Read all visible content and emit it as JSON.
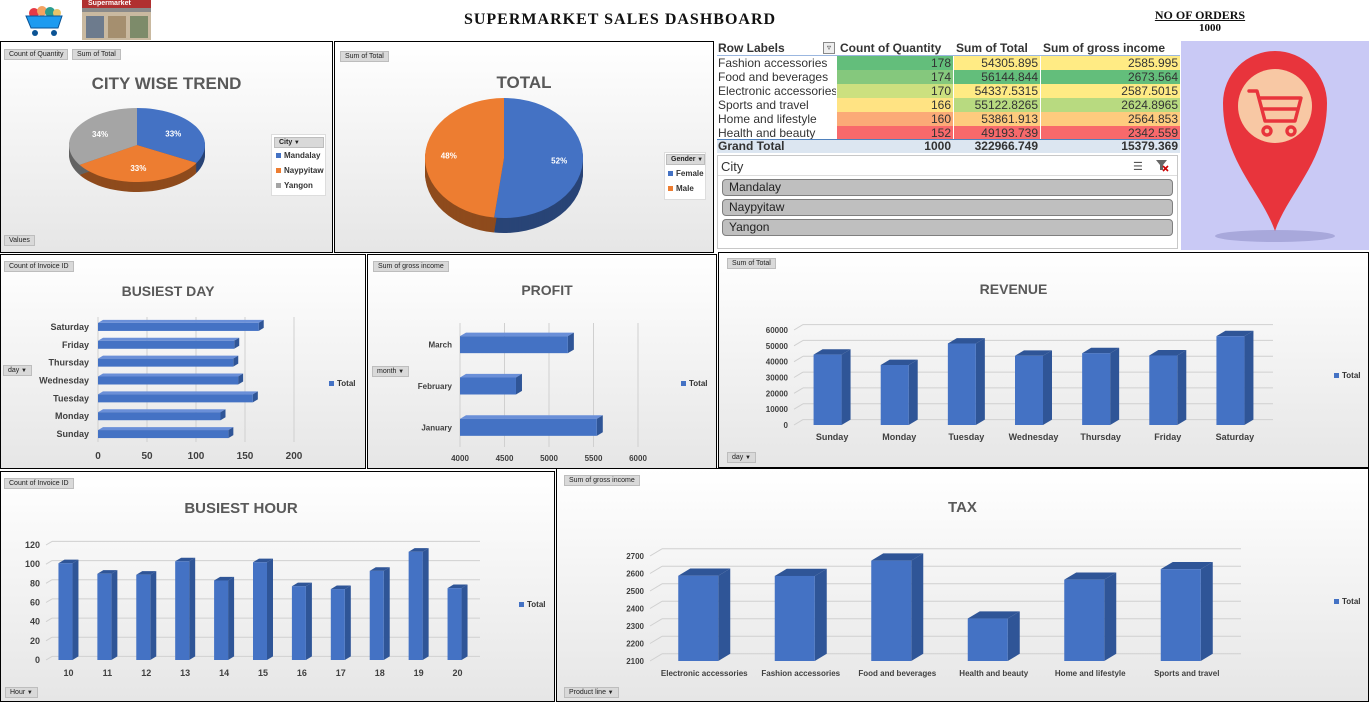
{
  "header": {
    "title": "SUPERMARKET SALES DASHBOARD",
    "store_sign": "Supermarket",
    "orders_label": "NO OF ORDERS",
    "orders_value": "1000"
  },
  "city_panel": {
    "buttons": [
      "Count of Quantity",
      "Sum of Total"
    ],
    "values_button": "Values",
    "filter_button": "City"
  },
  "gender_panel": {
    "buttons": [
      "Sum of Total"
    ],
    "filter_button": "Gender"
  },
  "pivot": {
    "headers": [
      "Row Labels",
      "Count of Quantity",
      "Sum of Total",
      "Sum of gross income"
    ],
    "rows": [
      {
        "label": "Fashion accessories",
        "qty": "178",
        "total": "54305.895",
        "gross": "2585.995",
        "c1": "#63be7b",
        "c2": "#ffeb84",
        "c3": "#ffeb84"
      },
      {
        "label": "Food and beverages",
        "qty": "174",
        "total": "56144.844",
        "gross": "2673.564",
        "c1": "#85c87d",
        "c2": "#63be7b",
        "c3": "#63be7b"
      },
      {
        "label": "Electronic accessories",
        "qty": "170",
        "total": "54337.5315",
        "gross": "2587.5015",
        "c1": "#cce07f",
        "c2": "#ffeb84",
        "c3": "#ffeb84"
      },
      {
        "label": "Sports and travel",
        "qty": "166",
        "total": "55122.8265",
        "gross": "2624.8965",
        "c1": "#ffe383",
        "c2": "#b8da80",
        "c3": "#b8da80"
      },
      {
        "label": "Home and lifestyle",
        "qty": "160",
        "total": "53861.913",
        "gross": "2564.853",
        "c1": "#fbaa77",
        "c2": "#fecb7e",
        "c3": "#fecb7e"
      },
      {
        "label": "Health and beauty",
        "qty": "152",
        "total": "49193.739",
        "gross": "2342.559",
        "c1": "#f8696b",
        "c2": "#f8696b",
        "c3": "#f8696b"
      }
    ],
    "grand": {
      "label": "Grand Total",
      "qty": "1000",
      "total": "322966.749",
      "gross": "15379.369"
    }
  },
  "slicer": {
    "title": "City",
    "items": [
      "Mandalay",
      "Naypyitaw",
      "Yangon"
    ]
  },
  "chart_data": [
    {
      "type": "pie",
      "title": "CITY WISE TREND",
      "categories": [
        "Mandalay",
        "Naypyitaw",
        "Yangon"
      ],
      "values": [
        33,
        33,
        34
      ],
      "labels": [
        "33%",
        "33%",
        "34%"
      ],
      "colors": [
        "#4472c4",
        "#ed7d31",
        "#a5a5a5"
      ],
      "legend_title": "City",
      "legend": "right"
    },
    {
      "type": "pie",
      "title": "TOTAL",
      "categories": [
        "Female",
        "Male"
      ],
      "values": [
        52,
        48
      ],
      "labels": [
        "52%",
        "48%"
      ],
      "colors": [
        "#4472c4",
        "#ed7d31"
      ],
      "legend_title": "Gender",
      "legend": "right"
    },
    {
      "type": "bar",
      "orientation": "horizontal",
      "title": "BUSIEST DAY",
      "field": "Count of Invoice ID",
      "axis_field": "day",
      "categories": [
        "Saturday",
        "Friday",
        "Thursday",
        "Wednesday",
        "Tuesday",
        "Monday",
        "Sunday"
      ],
      "series": [
        {
          "name": "Total",
          "values": [
            164,
            139,
            138,
            143,
            158,
            125,
            133
          ]
        }
      ],
      "xlim": [
        0,
        200
      ],
      "xticks": [
        "0",
        "50",
        "100",
        "150",
        "200"
      ],
      "grid": true
    },
    {
      "type": "bar",
      "orientation": "horizontal",
      "title": "PROFIT",
      "field": "Sum of gross income",
      "axis_field": "month",
      "categories": [
        "March",
        "February",
        "January"
      ],
      "series": [
        {
          "name": "Total",
          "values": [
            5212,
            4629,
            5537
          ]
        }
      ],
      "xlim": [
        4000,
        6000
      ],
      "xticks": [
        "4000",
        "4500",
        "5000",
        "5500",
        "6000"
      ],
      "grid": true
    },
    {
      "type": "bar",
      "title": "REVENUE",
      "field": "Sum of Total",
      "axis_field": "day",
      "categories": [
        "Sunday",
        "Monday",
        "Tuesday",
        "Wednesday",
        "Thursday",
        "Friday",
        "Saturday"
      ],
      "series": [
        {
          "name": "Total",
          "values": [
            44458,
            37900,
            51483,
            43731,
            45350,
            43926,
            56121
          ]
        }
      ],
      "ylim": [
        0,
        60000
      ],
      "yticks": [
        "0",
        "10000",
        "20000",
        "30000",
        "40000",
        "50000",
        "60000"
      ],
      "grid": true
    },
    {
      "type": "bar",
      "title": "BUSIEST HOUR",
      "field": "Count of Invoice ID",
      "axis_field": "Hour",
      "categories": [
        "10",
        "11",
        "12",
        "13",
        "14",
        "15",
        "16",
        "17",
        "18",
        "19",
        "20"
      ],
      "series": [
        {
          "name": "Total",
          "values": [
            101,
            90,
            89,
            103,
            83,
            102,
            77,
            74,
            93,
            113,
            75
          ]
        }
      ],
      "ylim": [
        0,
        120
      ],
      "yticks": [
        "0",
        "20",
        "40",
        "60",
        "80",
        "100",
        "120"
      ],
      "grid": true
    },
    {
      "type": "bar",
      "title": "TAX",
      "field": "Sum of gross income",
      "axis_field": "Product line",
      "categories": [
        "Electronic accessories",
        "Fashion accessories",
        "Food and beverages",
        "Health and beauty",
        "Home and lifestyle",
        "Sports and travel"
      ],
      "series": [
        {
          "name": "Total",
          "values": [
            2587.5,
            2586.0,
            2673.6,
            2342.6,
            2564.9,
            2624.9
          ]
        }
      ],
      "ylim": [
        2100,
        2700
      ],
      "yticks": [
        "2100",
        "2200",
        "2300",
        "2400",
        "2500",
        "2600",
        "2700"
      ],
      "grid": true
    }
  ]
}
